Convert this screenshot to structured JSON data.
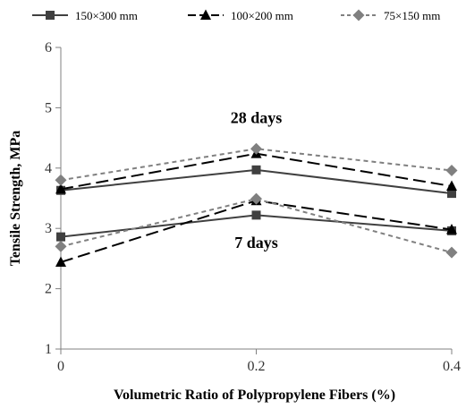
{
  "chart_data": {
    "type": "line",
    "xlabel": "Volumetric Ratio of Polypropylene Fibers (%)",
    "ylabel": "Tensile Strength, MPa",
    "x_ticks": [
      "0",
      "0.2",
      "0.4"
    ],
    "y_ticks": [
      "1",
      "2",
      "3",
      "4",
      "5",
      "6"
    ],
    "xlim": [
      0,
      0.4
    ],
    "ylim": [
      1,
      6
    ],
    "grid": false,
    "legend_position": "top",
    "x": [
      0,
      0.2,
      0.4
    ],
    "legend": [
      {
        "name": "150×300 mm",
        "color": "#404040",
        "dash": "solid",
        "marker": "square"
      },
      {
        "name": "100×200 mm",
        "color": "#000000",
        "dash": "long-dash",
        "marker": "triangle"
      },
      {
        "name": "75×150 mm",
        "color": "#808080",
        "dash": "short-dash",
        "marker": "diamond"
      }
    ],
    "series": [
      {
        "legend_index": 0,
        "group": "28 days",
        "values": [
          3.63,
          3.97,
          3.58
        ]
      },
      {
        "legend_index": 1,
        "group": "28 days",
        "values": [
          3.65,
          4.24,
          3.7
        ]
      },
      {
        "legend_index": 2,
        "group": "28 days",
        "values": [
          3.8,
          4.32,
          3.96
        ]
      },
      {
        "legend_index": 0,
        "group": "7 days",
        "values": [
          2.86,
          3.22,
          2.96
        ]
      },
      {
        "legend_index": 1,
        "group": "7 days",
        "values": [
          2.44,
          3.46,
          2.98
        ]
      },
      {
        "legend_index": 2,
        "group": "7 days",
        "values": [
          2.7,
          3.49,
          2.6
        ]
      }
    ],
    "annotations": [
      {
        "text": "28 days",
        "x": 0.2,
        "y": 4.75
      },
      {
        "text": "7 days",
        "x": 0.2,
        "y": 2.68
      }
    ]
  }
}
